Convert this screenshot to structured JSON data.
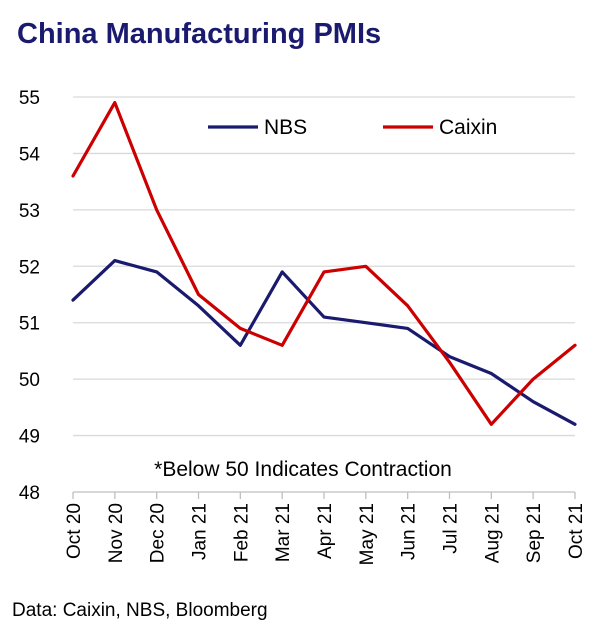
{
  "chart_data": {
    "type": "line",
    "title": "China Manufacturing PMIs",
    "categories": [
      "Oct 20",
      "Nov 20",
      "Dec 20",
      "Jan 21",
      "Feb 21",
      "Mar 21",
      "Apr 21",
      "May 21",
      "Jun 21",
      "Jul 21",
      "Aug 21",
      "Sep 21",
      "Oct 21"
    ],
    "series": [
      {
        "name": "NBS",
        "color": "#1a1a6e",
        "values": [
          51.4,
          52.1,
          51.9,
          51.3,
          50.6,
          51.9,
          51.1,
          51.0,
          50.9,
          50.4,
          50.1,
          49.6,
          49.2
        ]
      },
      {
        "name": "Caixin",
        "color": "#cc0000",
        "values": [
          53.6,
          54.9,
          53.0,
          51.5,
          50.9,
          50.6,
          51.9,
          52.0,
          51.3,
          50.3,
          49.2,
          50.0,
          50.6
        ]
      }
    ],
    "ylim": [
      48,
      55
    ],
    "yticks": [
      "48",
      "49",
      "50",
      "51",
      "52",
      "53",
      "54",
      "55"
    ],
    "grid": true,
    "legend": "top",
    "annotation": "*Below 50 Indicates Contraction",
    "source": "Data: Caixin, NBS, Bloomberg"
  }
}
